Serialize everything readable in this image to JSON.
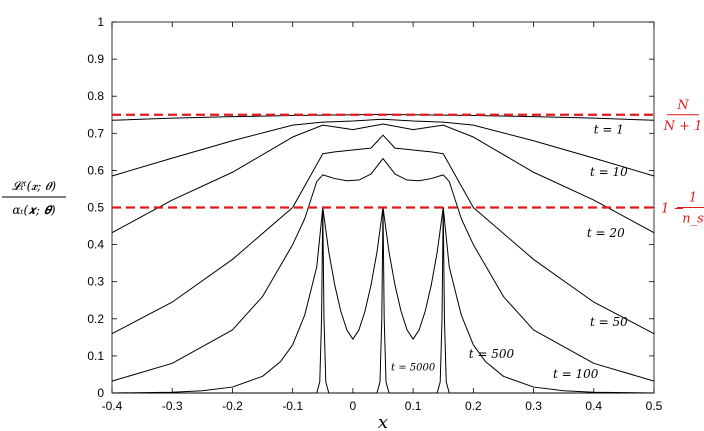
{
  "chart_data": {
    "type": "line",
    "xlabel": "x",
    "ylabel": {
      "numerator": "𝓛ₜᵗ(𝒙; 𝜽)",
      "denominator": "αₜ(𝒙; 𝜽)"
    },
    "xlim": [
      -0.4,
      0.5
    ],
    "ylim": [
      0,
      1
    ],
    "xticks": [
      "-0.4",
      "-0.3",
      "-0.2",
      "-0.1",
      "0",
      "0.1",
      "0.2",
      "0.3",
      "0.4",
      "0.5"
    ],
    "yticks": [
      "0",
      "0.1",
      "0.2",
      "0.3",
      "0.4",
      "0.5",
      "0.6",
      "0.7",
      "0.8",
      "0.9",
      "1"
    ],
    "grid": false,
    "reference_lines": [
      {
        "y": 0.75,
        "label_num": "N",
        "label_den": "N + 1",
        "color": "#e01b1b",
        "style": "dashed"
      },
      {
        "y": 0.5,
        "label_prefix": "1 −",
        "label_num": "1",
        "label_den": "n_s",
        "color": "#e01b1b",
        "style": "dashed"
      }
    ],
    "series": [
      {
        "name": "t = 1",
        "points": [
          [
            -0.4,
            0.735
          ],
          [
            -0.3,
            0.741
          ],
          [
            -0.2,
            0.745
          ],
          [
            -0.1,
            0.748
          ],
          [
            0,
            0.75
          ],
          [
            0.05,
            0.751
          ],
          [
            0.1,
            0.75
          ],
          [
            0.2,
            0.748
          ],
          [
            0.3,
            0.745
          ],
          [
            0.4,
            0.741
          ],
          [
            0.5,
            0.735
          ]
        ]
      },
      {
        "name": "t = 10",
        "points": [
          [
            -0.4,
            0.585
          ],
          [
            -0.3,
            0.633
          ],
          [
            -0.2,
            0.68
          ],
          [
            -0.1,
            0.722
          ],
          [
            -0.05,
            0.73
          ],
          [
            0,
            0.733
          ],
          [
            0.05,
            0.738
          ],
          [
            0.1,
            0.733
          ],
          [
            0.15,
            0.73
          ],
          [
            0.2,
            0.722
          ],
          [
            0.3,
            0.68
          ],
          [
            0.4,
            0.633
          ],
          [
            0.5,
            0.585
          ]
        ]
      },
      {
        "name": "t = 20",
        "points": [
          [
            -0.4,
            0.432
          ],
          [
            -0.3,
            0.52
          ],
          [
            -0.2,
            0.595
          ],
          [
            -0.1,
            0.69
          ],
          [
            -0.05,
            0.722
          ],
          [
            0,
            0.71
          ],
          [
            0.05,
            0.725
          ],
          [
            0.1,
            0.71
          ],
          [
            0.15,
            0.722
          ],
          [
            0.2,
            0.69
          ],
          [
            0.3,
            0.595
          ],
          [
            0.4,
            0.52
          ],
          [
            0.5,
            0.432
          ]
        ]
      },
      {
        "name": "t = 50",
        "points": [
          [
            -0.4,
            0.16
          ],
          [
            -0.3,
            0.245
          ],
          [
            -0.2,
            0.36
          ],
          [
            -0.1,
            0.5
          ],
          [
            -0.05,
            0.645
          ],
          [
            -0.03,
            0.65
          ],
          [
            0,
            0.655
          ],
          [
            0.03,
            0.66
          ],
          [
            0.05,
            0.695
          ],
          [
            0.07,
            0.66
          ],
          [
            0.1,
            0.655
          ],
          [
            0.13,
            0.65
          ],
          [
            0.15,
            0.645
          ],
          [
            0.2,
            0.5
          ],
          [
            0.3,
            0.36
          ],
          [
            0.4,
            0.245
          ],
          [
            0.5,
            0.16
          ]
        ]
      },
      {
        "name": "t = 100",
        "points": [
          [
            -0.4,
            0.032
          ],
          [
            -0.3,
            0.08
          ],
          [
            -0.2,
            0.17
          ],
          [
            -0.15,
            0.26
          ],
          [
            -0.1,
            0.4
          ],
          [
            -0.08,
            0.47
          ],
          [
            -0.06,
            0.57
          ],
          [
            -0.05,
            0.588
          ],
          [
            -0.03,
            0.578
          ],
          [
            -0.01,
            0.572
          ],
          [
            0.01,
            0.574
          ],
          [
            0.03,
            0.59
          ],
          [
            0.05,
            0.632
          ],
          [
            0.07,
            0.59
          ],
          [
            0.09,
            0.574
          ],
          [
            0.11,
            0.572
          ],
          [
            0.13,
            0.578
          ],
          [
            0.15,
            0.588
          ],
          [
            0.16,
            0.57
          ],
          [
            0.18,
            0.47
          ],
          [
            0.2,
            0.4
          ],
          [
            0.25,
            0.26
          ],
          [
            0.3,
            0.17
          ],
          [
            0.4,
            0.08
          ],
          [
            0.5,
            0.032
          ]
        ]
      },
      {
        "name": "t = 500",
        "points": [
          [
            -0.4,
            0
          ],
          [
            -0.3,
            0.002
          ],
          [
            -0.25,
            0.006
          ],
          [
            -0.2,
            0.016
          ],
          [
            -0.15,
            0.045
          ],
          [
            -0.12,
            0.085
          ],
          [
            -0.1,
            0.13
          ],
          [
            -0.08,
            0.21
          ],
          [
            -0.06,
            0.34
          ],
          [
            -0.05,
            0.5
          ],
          [
            -0.045,
            0.44
          ],
          [
            -0.04,
            0.38
          ],
          [
            -0.03,
            0.29
          ],
          [
            -0.02,
            0.22
          ],
          [
            -0.01,
            0.17
          ],
          [
            0,
            0.145
          ],
          [
            0.01,
            0.17
          ],
          [
            0.02,
            0.22
          ],
          [
            0.03,
            0.29
          ],
          [
            0.04,
            0.38
          ],
          [
            0.045,
            0.44
          ],
          [
            0.05,
            0.5
          ],
          [
            0.055,
            0.44
          ],
          [
            0.06,
            0.38
          ],
          [
            0.07,
            0.29
          ],
          [
            0.08,
            0.22
          ],
          [
            0.09,
            0.17
          ],
          [
            0.1,
            0.145
          ],
          [
            0.11,
            0.17
          ],
          [
            0.12,
            0.22
          ],
          [
            0.13,
            0.29
          ],
          [
            0.14,
            0.38
          ],
          [
            0.145,
            0.44
          ],
          [
            0.15,
            0.5
          ],
          [
            0.16,
            0.34
          ],
          [
            0.18,
            0.21
          ],
          [
            0.2,
            0.13
          ],
          [
            0.22,
            0.085
          ],
          [
            0.25,
            0.045
          ],
          [
            0.3,
            0.016
          ],
          [
            0.35,
            0.006
          ],
          [
            0.4,
            0.002
          ],
          [
            0.5,
            0
          ]
        ]
      },
      {
        "name": "t = 5000",
        "points": [
          [
            -0.4,
            0
          ],
          [
            -0.06,
            0
          ],
          [
            -0.055,
            0.03
          ],
          [
            -0.052,
            0.2
          ],
          [
            -0.05,
            0.5
          ],
          [
            -0.048,
            0.2
          ],
          [
            -0.045,
            0.03
          ],
          [
            -0.04,
            0
          ],
          [
            0.04,
            0
          ],
          [
            0.045,
            0.03
          ],
          [
            0.048,
            0.2
          ],
          [
            0.05,
            0.5
          ],
          [
            0.052,
            0.2
          ],
          [
            0.055,
            0.03
          ],
          [
            0.06,
            0
          ],
          [
            0.14,
            0
          ],
          [
            0.145,
            0.03
          ],
          [
            0.148,
            0.2
          ],
          [
            0.15,
            0.5
          ],
          [
            0.152,
            0.2
          ],
          [
            0.155,
            0.03
          ],
          [
            0.16,
            0
          ],
          [
            0.5,
            0
          ]
        ]
      }
    ],
    "curve_labels": [
      {
        "text": "t = 1",
        "series": "t = 1",
        "at": [
          0.425,
          0.7
        ]
      },
      {
        "text": "t = 10",
        "series": "t = 10",
        "at": [
          0.425,
          0.585
        ]
      },
      {
        "text": "t = 20",
        "series": "t = 20",
        "at": [
          0.42,
          0.42
        ]
      },
      {
        "text": "t = 50",
        "series": "t = 50",
        "at": [
          0.425,
          0.18
        ]
      },
      {
        "text": "t = 100",
        "series": "t = 100",
        "at": [
          0.37,
          0.04
        ]
      },
      {
        "text": "t = 500",
        "series": "t = 500",
        "at": [
          0.23,
          0.095
        ]
      },
      {
        "text": "t = 5000",
        "series": "t = 5000",
        "at": [
          0.1,
          0.06
        ],
        "small": true
      }
    ],
    "colors": {
      "curve": "#000000",
      "reference": "#e01b1b"
    }
  }
}
